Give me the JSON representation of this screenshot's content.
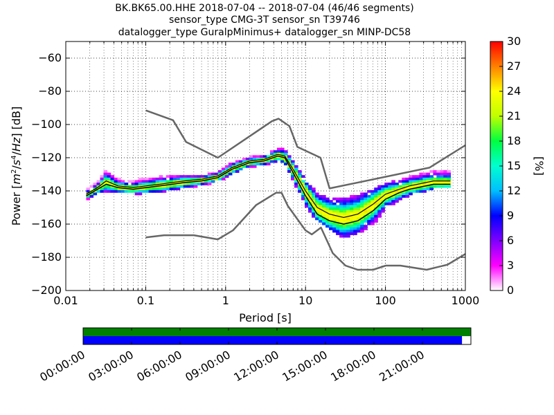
{
  "title": {
    "line1": "BK.BK65.00.HHE   2018-07-04 -- 2018-07-04  (46/46 segments)",
    "line2": "sensor_type CMG-3T sensor_sn T39746",
    "line3": "datalogger_type GuralpMinimus+ datalogger_sn MINP-DC58"
  },
  "chart_data": [
    {
      "type": "heatmap",
      "xlabel": "Period [s]",
      "ylabel": "Power [m²/s⁴/Hz] [dB]",
      "x_scale": "log",
      "xlim": [
        0.01,
        1000
      ],
      "ylim": [
        -200,
        -50
      ],
      "x_ticks": [
        {
          "value": 0.01,
          "label": "0.01"
        },
        {
          "value": 0.1,
          "label": "0.1"
        },
        {
          "value": 1,
          "label": "1"
        },
        {
          "value": 10,
          "label": "10"
        },
        {
          "value": 100,
          "label": "100"
        },
        {
          "value": 1000,
          "label": "1000"
        }
      ],
      "y_ticks": [
        {
          "value": -60,
          "label": "−60"
        },
        {
          "value": -80,
          "label": "−80"
        },
        {
          "value": -100,
          "label": "−100"
        },
        {
          "value": -120,
          "label": "−120"
        },
        {
          "value": -140,
          "label": "−140"
        },
        {
          "value": -160,
          "label": "−160"
        },
        {
          "value": -180,
          "label": "−180"
        },
        {
          "value": -200,
          "label": "−200"
        }
      ],
      "grid": true,
      "colorbar": {
        "label": "[%]",
        "min": 0,
        "max": 30,
        "ticks": [
          {
            "value": 0,
            "label": "0"
          },
          {
            "value": 3,
            "label": "3"
          },
          {
            "value": 6,
            "label": "6"
          },
          {
            "value": 9,
            "label": "9"
          },
          {
            "value": 12,
            "label": "12"
          },
          {
            "value": 15,
            "label": "15"
          },
          {
            "value": 18,
            "label": "18"
          },
          {
            "value": 21,
            "label": "21"
          },
          {
            "value": 24,
            "label": "24"
          },
          {
            "value": 27,
            "label": "27"
          },
          {
            "value": 30,
            "label": "30"
          }
        ],
        "colors": [
          "#ffffff",
          "#ff00ff",
          "#7f00ff",
          "#0000ff",
          "#00bfff",
          "#00ffd0",
          "#00ff40",
          "#c0ff00",
          "#ffff00",
          "#ff8000",
          "#ff0000"
        ]
      },
      "nhnm": {
        "color": "#666666",
        "x": [
          0.1,
          0.22,
          0.32,
          0.8,
          3.8,
          4.6,
          6.3,
          7.9,
          15.4,
          20,
          354.8,
          1000
        ],
        "y": [
          -91.5,
          -97.4,
          -110.5,
          -120,
          -98,
          -96.5,
          -101,
          -113.5,
          -120,
          -138.5,
          -126,
          -112.5
        ]
      },
      "nlnm": {
        "color": "#666666",
        "x": [
          0.1,
          0.17,
          0.4,
          0.8,
          1.24,
          2.4,
          4.3,
          5,
          6,
          10,
          12,
          15.6,
          21.9,
          31.6,
          45,
          70,
          101,
          154,
          328,
          600,
          1000
        ],
        "y": [
          -168,
          -166.7,
          -166.7,
          -169.2,
          -163.7,
          -148.6,
          -141.1,
          -141.1,
          -149,
          -163.8,
          -166.2,
          -162.1,
          -177.5,
          -185,
          -187.5,
          -187.5,
          -185,
          -185,
          -187.5,
          -184.4,
          -178
        ]
      },
      "mode_line": {
        "color": "#000000",
        "x": [
          0.018,
          0.025,
          0.032,
          0.045,
          0.07,
          0.1,
          0.15,
          0.3,
          0.5,
          0.8,
          1.2,
          2,
          3,
          4.5,
          5.5,
          7,
          10,
          14,
          20,
          30,
          45,
          70,
          100,
          150,
          200,
          400,
          650
        ],
        "y": [
          -142,
          -138,
          -134,
          -137,
          -138,
          -137,
          -136,
          -134,
          -133,
          -131,
          -126,
          -122,
          -121,
          -118,
          -119,
          -127,
          -140,
          -150,
          -154,
          -156,
          -154,
          -148,
          -142,
          -139,
          -137,
          -134,
          -134
        ]
      },
      "mean_line": {
        "color": "#000000",
        "x": [
          0.018,
          0.025,
          0.032,
          0.045,
          0.07,
          0.1,
          0.15,
          0.3,
          0.5,
          0.8,
          1.2,
          2,
          3,
          4.5,
          5.5,
          7,
          10,
          14,
          20,
          30,
          45,
          70,
          100,
          150,
          200,
          400,
          650
        ],
        "y": [
          -143,
          -139,
          -136,
          -138,
          -139,
          -138,
          -137,
          -135,
          -134,
          -132,
          -127,
          -123,
          -122,
          -119,
          -120,
          -129,
          -143,
          -154,
          -158,
          -160,
          -158,
          -152,
          -145,
          -141,
          -139,
          -136,
          -136
        ]
      },
      "spread": {
        "x": [
          0.018,
          0.025,
          0.032,
          0.045,
          0.07,
          0.1,
          0.15,
          0.3,
          0.5,
          0.8,
          1.2,
          2,
          3,
          4.5,
          5.5,
          7,
          10,
          14,
          20,
          30,
          45,
          70,
          100,
          150,
          200,
          400,
          650
        ],
        "upper": [
          -140,
          -135,
          -128,
          -133,
          -134,
          -133,
          -132,
          -131,
          -131,
          -129,
          -123,
          -120,
          -119,
          -115,
          -115,
          -122,
          -133,
          -142,
          -145,
          -145,
          -143,
          -140,
          -136,
          -134,
          -132,
          -128,
          -128
        ],
        "lower": [
          -145,
          -141,
          -140,
          -140,
          -141,
          -141,
          -140,
          -138,
          -136,
          -134,
          -129,
          -125,
          -124,
          -122,
          -123,
          -133,
          -148,
          -159,
          -164,
          -168,
          -165,
          -160,
          -150,
          -145,
          -142,
          -138,
          -137
        ]
      }
    },
    {
      "type": "timeline",
      "xlim": [
        "00:00:00",
        "24:00:00"
      ],
      "x_ticks": [
        "00:00:00",
        "03:00:00",
        "06:00:00",
        "09:00:00",
        "12:00:00",
        "15:00:00",
        "18:00:00",
        "21:00:00"
      ],
      "tracks": [
        {
          "color": "#008000",
          "coverage": [
            0,
            1
          ]
        },
        {
          "color": "#0000ff",
          "coverage": [
            0,
            0.977
          ]
        }
      ]
    }
  ]
}
